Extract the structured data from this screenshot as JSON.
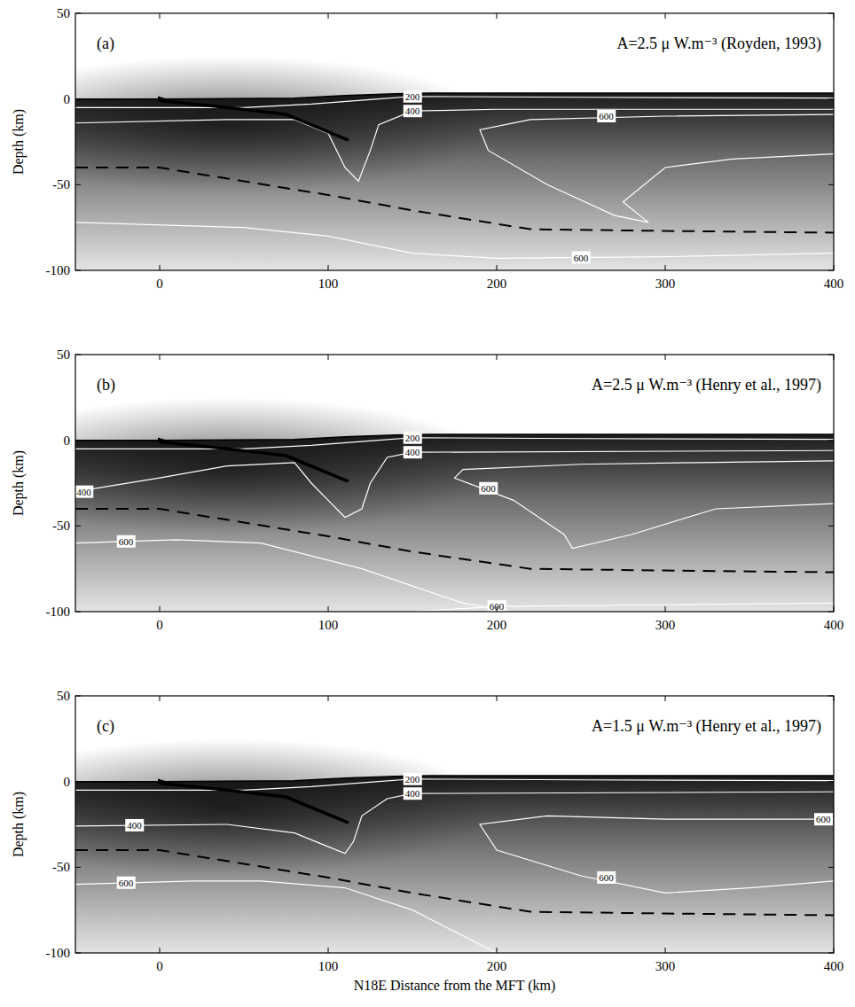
{
  "chart_data": [
    {
      "type": "contour",
      "panel_label": "(a)",
      "title": "A=2.5 μ W.m⁻³ (Royden, 1993)",
      "y_label": "Depth (km)",
      "xlim": [
        -50,
        400
      ],
      "ylim": [
        -100,
        50
      ],
      "xticks": [
        0,
        100,
        200,
        300,
        400
      ],
      "yticks": [
        -100,
        -50,
        0,
        50
      ],
      "topography": {
        "x": [
          -50,
          0,
          80,
          110,
          140,
          160,
          400
        ],
        "y": [
          0,
          0,
          0.5,
          2,
          3,
          3.5,
          3.5
        ]
      },
      "fault": {
        "x": [
          0,
          40,
          75,
          112
        ],
        "y": [
          -1,
          -5,
          -9,
          -24
        ]
      },
      "moho": {
        "x": [
          -50,
          0,
          50,
          100,
          150,
          220,
          300,
          400
        ],
        "y": [
          -40,
          -40,
          -48,
          -56,
          -65,
          -76,
          -77,
          -78
        ],
        "line_style": "dashed"
      },
      "contours": [
        {
          "level": 200,
          "x": [
            -50,
            50,
            90,
            130,
            150,
            250,
            400
          ],
          "y": [
            -5,
            -5,
            -3,
            0,
            1.5,
            1,
            0.5
          ],
          "label_x": [
            150
          ],
          "label_y": [
            1.5
          ]
        },
        {
          "level": 400,
          "x": [
            -50,
            40,
            80,
            100,
            110,
            118,
            125,
            130,
            150,
            200,
            400
          ],
          "y": [
            -14,
            -12,
            -12,
            -20,
            -40,
            -48,
            -30,
            -15,
            -7,
            -6,
            -6
          ],
          "label_x": [
            150
          ],
          "label_y": [
            -7
          ]
        },
        {
          "level": 600,
          "x": [
            400,
            300,
            220,
            190,
            195,
            230,
            270,
            290,
            275,
            300,
            340,
            400
          ],
          "y": [
            -9,
            -10,
            -12,
            -18,
            -30,
            -50,
            -68,
            -72,
            -60,
            -40,
            -35,
            -32
          ],
          "label_x": [
            265
          ],
          "label_y": [
            -10
          ]
        },
        {
          "level": 600,
          "x": [
            -50,
            50,
            100,
            150,
            200,
            300,
            400
          ],
          "y": [
            -72,
            -75,
            -80,
            -90,
            -93,
            -92,
            -90
          ],
          "label_x": [
            250
          ],
          "label_y": [
            -92.5
          ]
        }
      ]
    },
    {
      "type": "contour",
      "panel_label": "(b)",
      "title": "A=2.5 μ W.m⁻³ (Henry et al., 1997)",
      "y_label": "Depth (km)",
      "xlim": [
        -50,
        400
      ],
      "ylim": [
        -100,
        50
      ],
      "xticks": [
        0,
        100,
        200,
        300,
        400
      ],
      "yticks": [
        -100,
        -50,
        0,
        50
      ],
      "topography": {
        "x": [
          -50,
          0,
          80,
          110,
          140,
          160,
          400
        ],
        "y": [
          0,
          0,
          0.5,
          2,
          3,
          3.5,
          3.5
        ]
      },
      "fault": {
        "x": [
          0,
          40,
          75,
          112
        ],
        "y": [
          -1,
          -5,
          -9,
          -24
        ]
      },
      "moho": {
        "x": [
          -50,
          0,
          50,
          100,
          150,
          220,
          300,
          400
        ],
        "y": [
          -40,
          -40,
          -48,
          -56,
          -65,
          -75,
          -76,
          -77
        ],
        "line_style": "dashed"
      },
      "contours": [
        {
          "level": 200,
          "x": [
            -50,
            50,
            90,
            130,
            150,
            250,
            400
          ],
          "y": [
            -5,
            -5,
            -3,
            0,
            1.5,
            1,
            0.5
          ],
          "label_x": [
            150
          ],
          "label_y": [
            1.5
          ]
        },
        {
          "level": 400,
          "x": [
            -50,
            0,
            40,
            80,
            90,
            100,
            110,
            120,
            125,
            135,
            150,
            400
          ],
          "y": [
            -30,
            -22,
            -15,
            -13,
            -25,
            -35,
            -45,
            -40,
            -25,
            -10,
            -7,
            -6
          ],
          "label_x": [
            -45,
            150
          ],
          "label_y": [
            -30,
            -7
          ]
        },
        {
          "level": 600,
          "x": [
            -50,
            10,
            60,
            120,
            180,
            210
          ],
          "y": [
            -60,
            -58,
            -60,
            -75,
            -95,
            -100
          ],
          "label_x": [
            -20
          ],
          "label_y": [
            -59
          ]
        },
        {
          "level": 600,
          "x": [
            400,
            320,
            250,
            180,
            175,
            210,
            240,
            245,
            280,
            330,
            400
          ],
          "y": [
            -12,
            -13,
            -14,
            -17,
            -22,
            -35,
            -55,
            -63,
            -55,
            -40,
            -37
          ],
          "label_x": [
            195
          ],
          "label_y": [
            -28
          ]
        },
        {
          "level": 600,
          "x": [
            150,
            200,
            300,
            400
          ],
          "y": [
            -100,
            -97,
            -96,
            -95
          ],
          "label_x": [
            200
          ],
          "label_y": [
            -97
          ]
        }
      ]
    },
    {
      "type": "contour",
      "panel_label": "(c)",
      "title": "A=1.5 μ W.m⁻³ (Henry et al., 1997)",
      "x_label": "N18E Distance from the MFT (km)",
      "y_label": "Depth (km)",
      "xlim": [
        -50,
        400
      ],
      "ylim": [
        -100,
        50
      ],
      "xticks": [
        0,
        100,
        200,
        300,
        400
      ],
      "yticks": [
        -100,
        -50,
        0,
        50
      ],
      "topography": {
        "x": [
          -50,
          0,
          80,
          110,
          140,
          160,
          400
        ],
        "y": [
          0,
          0,
          0.5,
          2,
          3,
          3.5,
          3.5
        ]
      },
      "fault": {
        "x": [
          0,
          40,
          75,
          112
        ],
        "y": [
          -1,
          -5,
          -9,
          -24
        ]
      },
      "moho": {
        "x": [
          -50,
          0,
          50,
          100,
          150,
          220,
          300,
          400
        ],
        "y": [
          -40,
          -40,
          -48,
          -56,
          -65,
          -76,
          -77,
          -78
        ],
        "line_style": "dashed"
      },
      "contours": [
        {
          "level": 200,
          "x": [
            -50,
            50,
            90,
            130,
            150,
            250,
            400
          ],
          "y": [
            -5,
            -5,
            -3,
            0,
            1.5,
            1,
            0.5
          ],
          "label_x": [
            150
          ],
          "label_y": [
            1.5
          ]
        },
        {
          "level": 400,
          "x": [
            -50,
            40,
            80,
            100,
            110,
            115,
            120,
            135,
            150,
            400
          ],
          "y": [
            -26,
            -25,
            -30,
            -38,
            -42,
            -35,
            -20,
            -10,
            -7,
            -6
          ],
          "label_x": [
            -15,
            150
          ],
          "label_y": [
            -25.5,
            -7
          ]
        },
        {
          "level": 600,
          "x": [
            -50,
            20,
            60,
            110,
            150,
            190,
            200
          ],
          "y": [
            -60,
            -58,
            -58,
            -62,
            -75,
            -95,
            -100
          ],
          "label_x": [
            -20
          ],
          "label_y": [
            -59
          ]
        },
        {
          "level": 600,
          "x": [
            400,
            300,
            230,
            190,
            200,
            250,
            300,
            350,
            400
          ],
          "y": [
            -22,
            -22,
            -20,
            -25,
            -40,
            -55,
            -65,
            -62,
            -58
          ],
          "label_x": [
            265,
            395
          ],
          "label_y": [
            -56,
            -22
          ]
        }
      ]
    }
  ]
}
